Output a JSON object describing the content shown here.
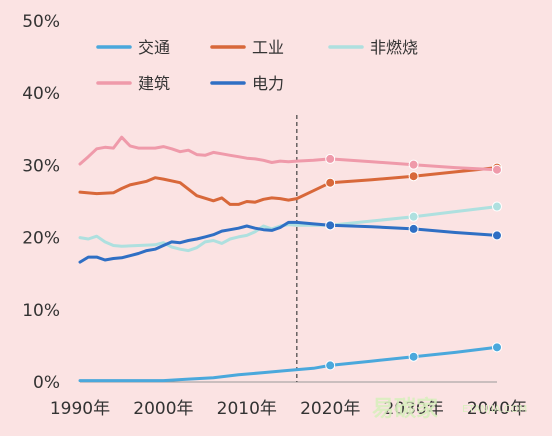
{
  "watermark": "易碳家",
  "watermark_sub": "ETANJIA.COM",
  "chart_data": {
    "type": "line",
    "title": "",
    "xlabel": "",
    "ylabel": "",
    "xlim": [
      1990,
      2040
    ],
    "ylim": [
      0,
      50
    ],
    "x_ticks": [
      1990,
      2000,
      2010,
      2020,
      2030,
      2040
    ],
    "x_tick_labels": [
      "1990年",
      "2000年",
      "2010年",
      "2020年",
      "2030年",
      "2040年"
    ],
    "y_ticks": [
      0,
      10,
      20,
      30,
      40,
      50
    ],
    "y_tick_labels": [
      "0%",
      "10%",
      "20%",
      "30%",
      "40%",
      "50%"
    ],
    "grid": false,
    "legend_position": "top",
    "projection_divider_x": 2016,
    "projection_markers_x": [
      2020,
      2030,
      2040
    ],
    "series": [
      {
        "name": "交通",
        "color": "#4aa8dc",
        "x": [
          1990,
          1995,
          2000,
          2003,
          2006,
          2009,
          2012,
          2015,
          2018,
          2020,
          2025,
          2030,
          2035,
          2040
        ],
        "y": [
          0.2,
          0.2,
          0.2,
          0.4,
          0.6,
          1.0,
          1.3,
          1.6,
          1.9,
          2.3,
          2.9,
          3.5,
          4.1,
          4.8
        ]
      },
      {
        "name": "工业",
        "color": "#d8683a",
        "x": [
          1990,
          1992,
          1994,
          1995,
          1996,
          1998,
          1999,
          2000,
          2002,
          2004,
          2006,
          2007,
          2008,
          2009,
          2010,
          2011,
          2012,
          2013,
          2014,
          2015,
          2016,
          2018,
          2020,
          2025,
          2030,
          2035,
          2040
        ],
        "y": [
          26.3,
          26.1,
          26.2,
          26.8,
          27.3,
          27.8,
          28.3,
          28.1,
          27.6,
          25.8,
          25.1,
          25.5,
          24.6,
          24.6,
          25.0,
          24.9,
          25.3,
          25.5,
          25.4,
          25.2,
          25.4,
          26.5,
          27.6,
          28.0,
          28.5,
          29.1,
          29.7
        ]
      },
      {
        "name": "非燃烧",
        "color": "#aee0df",
        "x": [
          1990,
          1991,
          1992,
          1993,
          1994,
          1995,
          1997,
          1999,
          2000,
          2001,
          2002,
          2003,
          2004,
          2005,
          2006,
          2007,
          2008,
          2009,
          2010,
          2011,
          2012,
          2013,
          2014,
          2015,
          2016,
          2018,
          2020,
          2025,
          2030,
          2035,
          2040
        ],
        "y": [
          20.0,
          19.8,
          20.2,
          19.4,
          18.9,
          18.8,
          18.9,
          19.0,
          19.3,
          18.7,
          18.4,
          18.2,
          18.6,
          19.4,
          19.6,
          19.2,
          19.8,
          20.1,
          20.3,
          20.8,
          21.6,
          21.2,
          21.6,
          21.8,
          21.7,
          21.7,
          21.7,
          22.3,
          22.9,
          23.6,
          24.3
        ]
      },
      {
        "name": "建筑",
        "color": "#ef9aaa",
        "x": [
          1990,
          1991,
          1992,
          1993,
          1994,
          1995,
          1996,
          1997,
          1999,
          2000,
          2001,
          2002,
          2003,
          2004,
          2005,
          2006,
          2007,
          2008,
          2009,
          2010,
          2011,
          2012,
          2013,
          2014,
          2015,
          2016,
          2018,
          2020,
          2025,
          2030,
          2035,
          2040
        ],
        "y": [
          30.2,
          31.2,
          32.3,
          32.5,
          32.4,
          33.9,
          32.7,
          32.4,
          32.4,
          32.6,
          32.3,
          31.9,
          32.1,
          31.5,
          31.4,
          31.8,
          31.6,
          31.4,
          31.2,
          31.0,
          30.9,
          30.7,
          30.4,
          30.6,
          30.5,
          30.6,
          30.7,
          30.9,
          30.5,
          30.1,
          29.7,
          29.4
        ]
      },
      {
        "name": "电力",
        "color": "#2f6fc4",
        "x": [
          1990,
          1991,
          1992,
          1993,
          1994,
          1995,
          1996,
          1997,
          1998,
          1999,
          2000,
          2001,
          2002,
          2003,
          2004,
          2005,
          2006,
          2007,
          2008,
          2009,
          2010,
          2011,
          2012,
          2013,
          2014,
          2015,
          2016,
          2018,
          2020,
          2025,
          2030,
          2035,
          2040
        ],
        "y": [
          16.6,
          17.3,
          17.3,
          16.9,
          17.1,
          17.2,
          17.5,
          17.8,
          18.2,
          18.4,
          18.9,
          19.4,
          19.3,
          19.6,
          19.8,
          20.1,
          20.4,
          20.9,
          21.1,
          21.3,
          21.6,
          21.3,
          21.1,
          21.0,
          21.4,
          22.1,
          22.1,
          21.9,
          21.7,
          21.5,
          21.2,
          20.7,
          20.3
        ]
      }
    ]
  }
}
